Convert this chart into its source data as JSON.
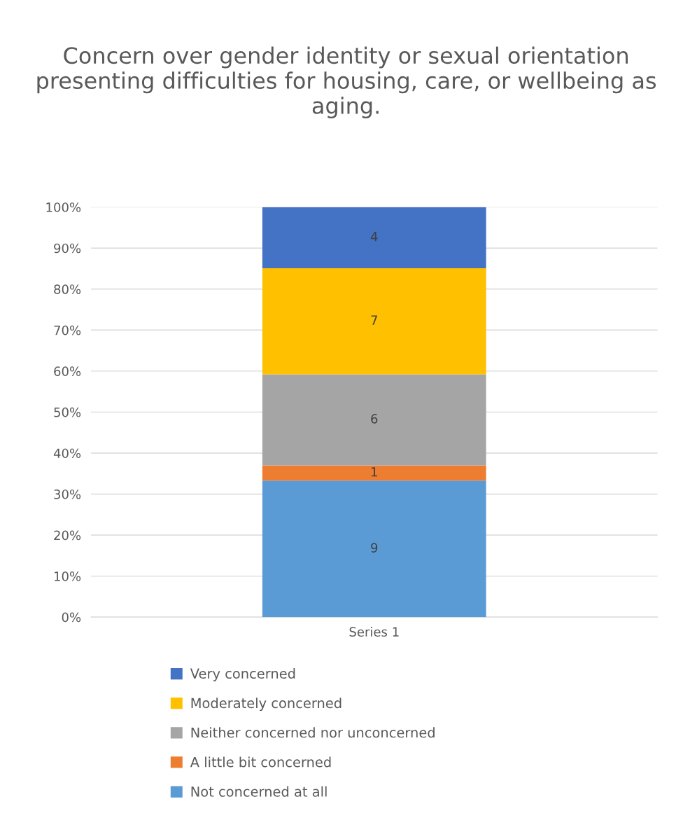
{
  "chart_data": {
    "type": "bar",
    "stacked": true,
    "title": "Concern over gender identity or sexual orientation presenting difficulties for housing, care, or wellbeing as aging.",
    "categories": [
      "Series 1"
    ],
    "series": [
      {
        "name": "Not concerned at all",
        "color": "#5b9bd5",
        "values": [
          33.3
        ]
      },
      {
        "name": "A little bit concerned",
        "color": "#ed7d31",
        "values": [
          3.7
        ]
      },
      {
        "name": "Neither concerned nor unconcerned",
        "color": "#a5a5a5",
        "values": [
          22.2
        ]
      },
      {
        "name": "Moderately concerned",
        "color": "#ffc000",
        "values": [
          25.9
        ]
      },
      {
        "name": "Very concerned",
        "color": "#4472c4",
        "values": [
          14.9
        ]
      }
    ],
    "annotations": [
      "9",
      "1",
      "6",
      "7",
      "4"
    ],
    "ylim": [
      0,
      100
    ],
    "yticks": [
      {
        "value": 0,
        "label": "0%"
      },
      {
        "value": 10,
        "label": "10%"
      },
      {
        "value": 20,
        "label": "20%"
      },
      {
        "value": 30,
        "label": "30%"
      },
      {
        "value": 40,
        "label": "40%"
      },
      {
        "value": 50,
        "label": "50%"
      },
      {
        "value": 60,
        "label": "60%"
      },
      {
        "value": 70,
        "label": "70%"
      },
      {
        "value": 80,
        "label": "80%"
      },
      {
        "value": 90,
        "label": "90%"
      },
      {
        "value": 100,
        "label": "100%"
      }
    ],
    "grid": "y",
    "legend": "bottom"
  }
}
